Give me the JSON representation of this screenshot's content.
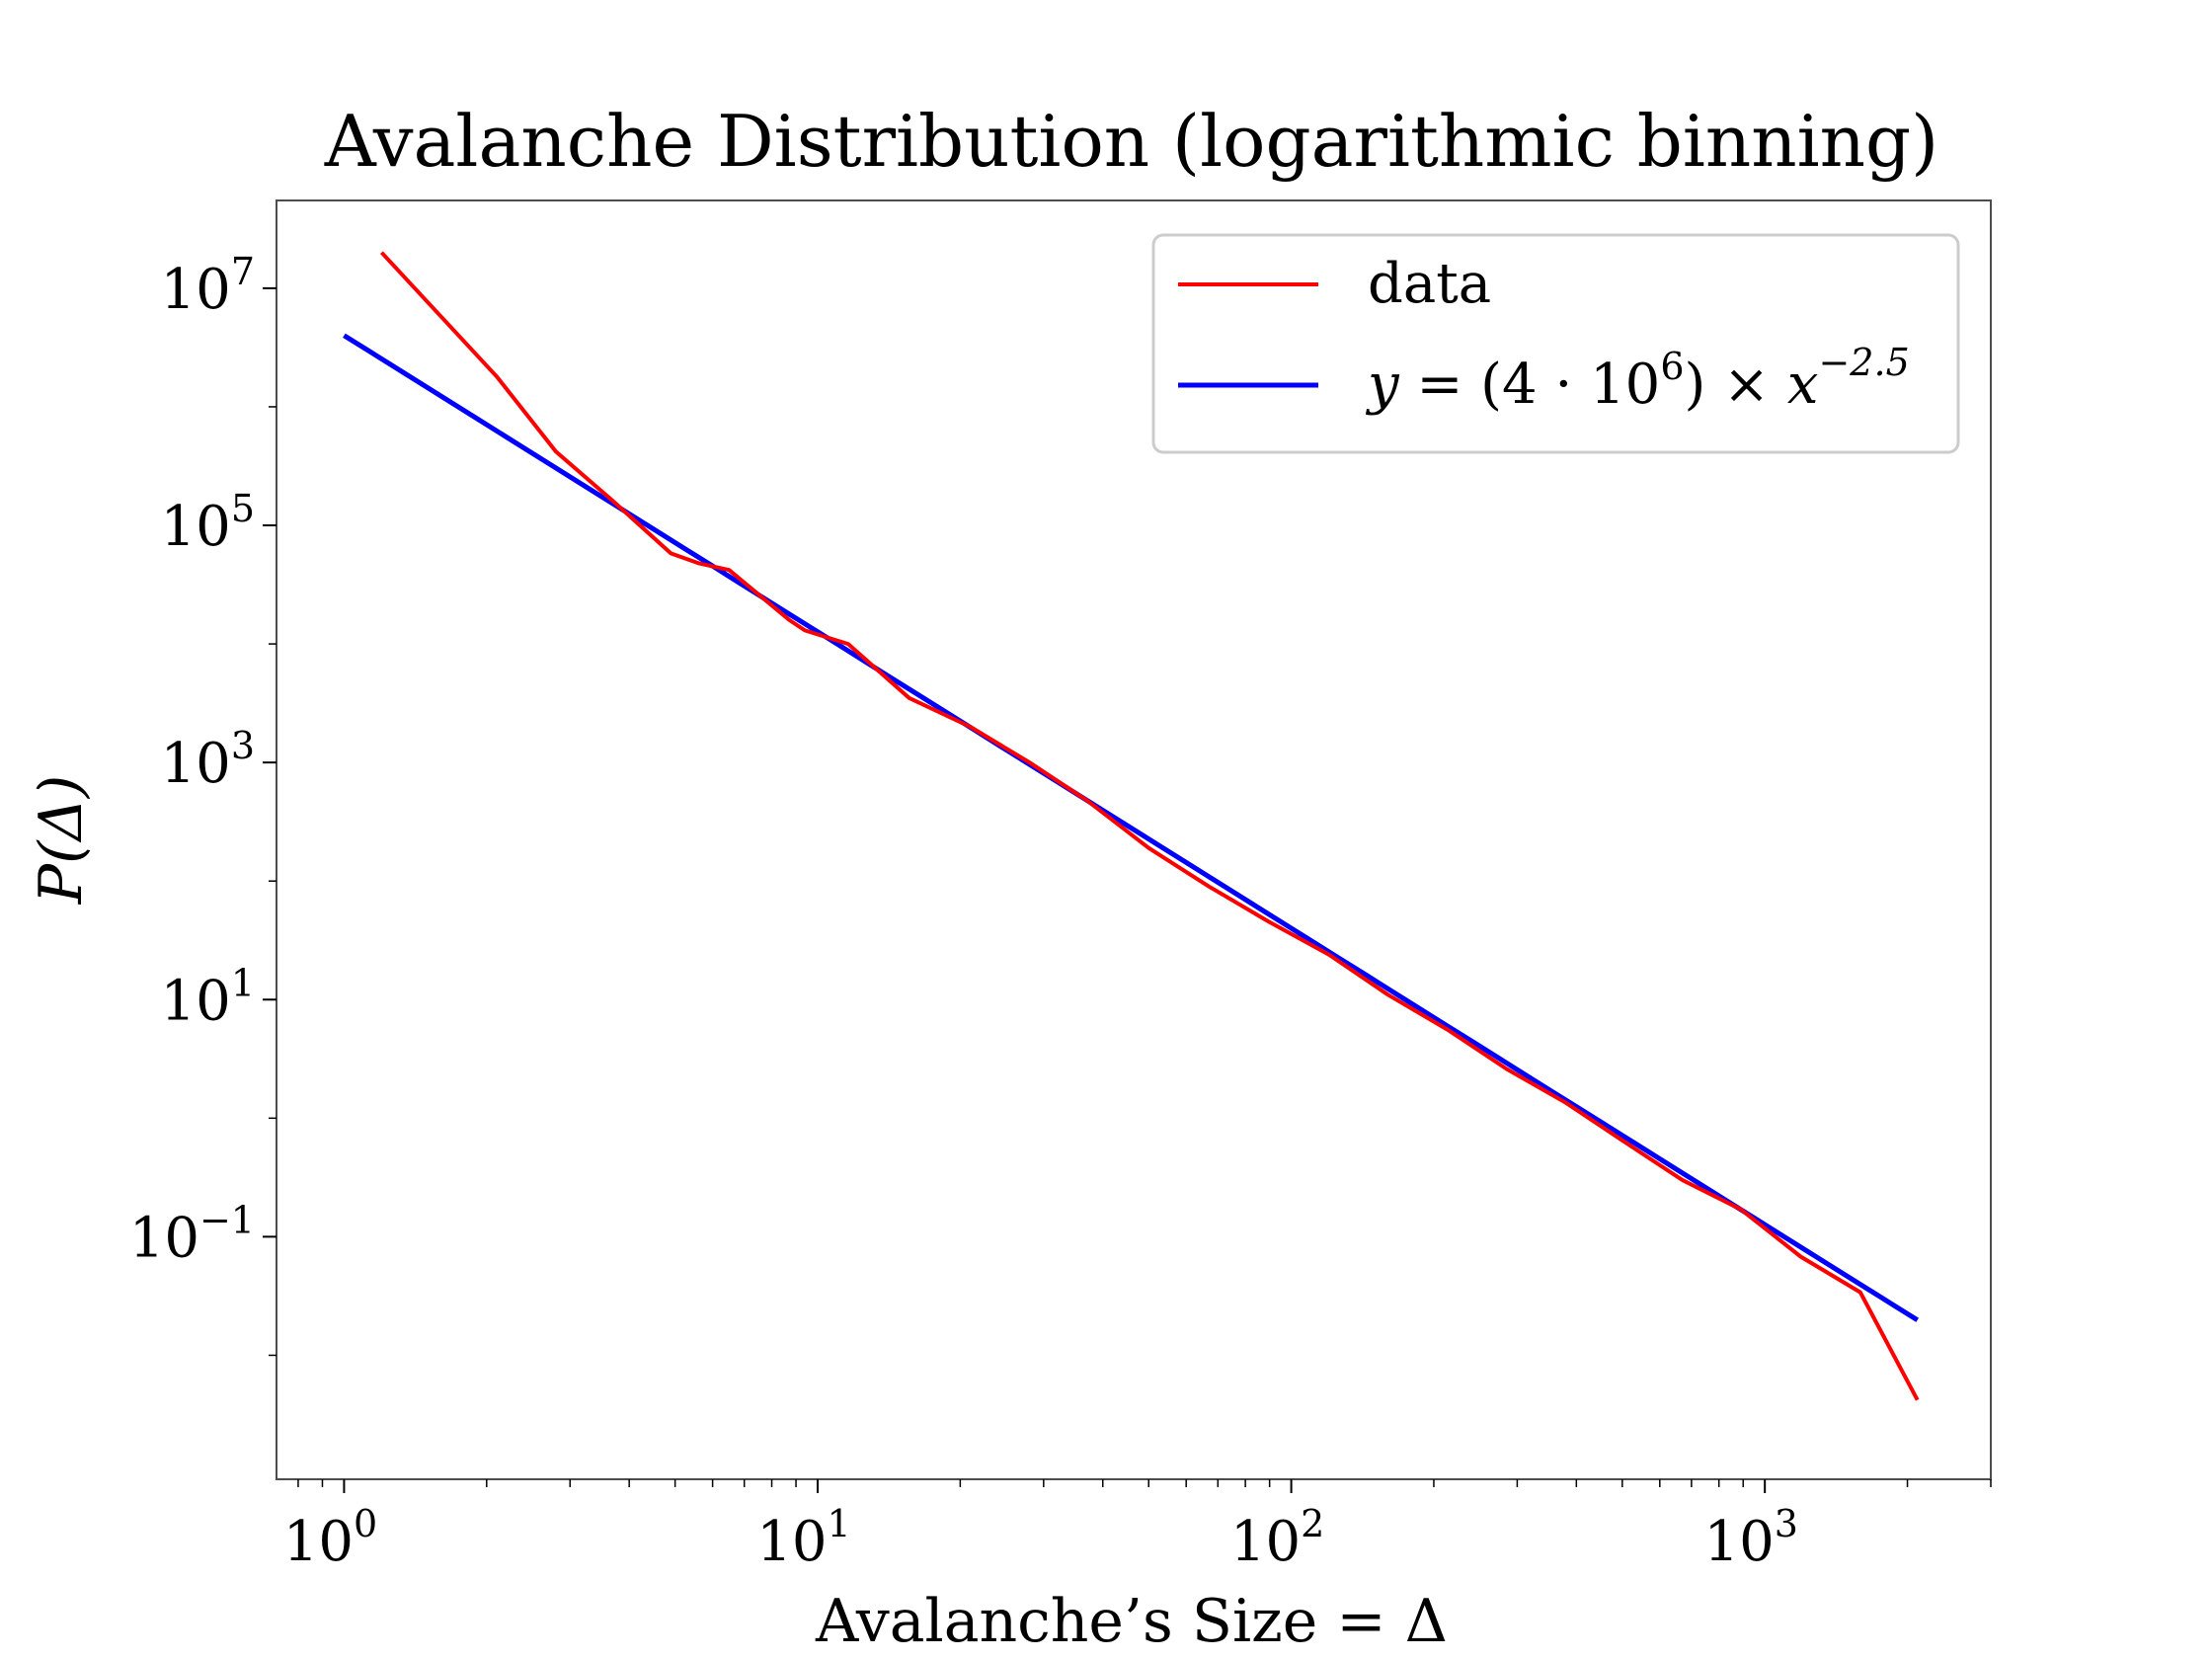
{
  "chart_data": {
    "type": "line",
    "title": "Avalanche Distribution (logarithmic binning)",
    "xlabel": "Avalanche’s Size = Δ",
    "ylabel": "P(Δ)",
    "xscale": "log",
    "yscale": "log",
    "xlim": [
      0.72,
      3000
    ],
    "ylim": [
      0.0009,
      55000000
    ],
    "grid": false,
    "legend_position": "top-right",
    "x_ticks": [
      {
        "value": 1,
        "base": "10",
        "exp": "0"
      },
      {
        "value": 10,
        "base": "10",
        "exp": "1"
      },
      {
        "value": 100,
        "base": "10",
        "exp": "2"
      },
      {
        "value": 1000,
        "base": "10",
        "exp": "3"
      }
    ],
    "y_ticks": [
      {
        "value": 0.1,
        "base": "10",
        "exp": "−1"
      },
      {
        "value": 10,
        "base": "10",
        "exp": "1"
      },
      {
        "value": 1000,
        "base": "10",
        "exp": "3"
      },
      {
        "value": 100000,
        "base": "10",
        "exp": "5"
      },
      {
        "value": 10000000,
        "base": "10",
        "exp": "7"
      }
    ],
    "series": [
      {
        "name": "data",
        "color": "#ff0000",
        "x": [
          1.2,
          2.1,
          2.8,
          3.7,
          4.9,
          5.6,
          6.5,
          8.7,
          9.4,
          11.6,
          15.6,
          21,
          28,
          37,
          50,
          67,
          90,
          120,
          160,
          215,
          285,
          380,
          500,
          670,
          890,
          1190,
          1590,
          2100
        ],
        "y": [
          20000000,
          1800000,
          420000,
          160000,
          58000,
          48000,
          42000,
          16000,
          13000,
          10000,
          3500,
          2000,
          1000,
          480,
          190,
          90,
          45,
          24,
          11,
          5.5,
          2.6,
          1.35,
          0.65,
          0.3,
          0.17,
          0.068,
          0.034,
          0.0042
        ]
      },
      {
        "name": "y = (4·10⁶) × x⁻²·⁵",
        "color": "#0000ff",
        "coefficient": 4000000,
        "exponent": -2.5,
        "x_range": [
          1,
          2100
        ]
      }
    ],
    "legend": {
      "entries": [
        {
          "label": "data",
          "color": "#ff0000"
        },
        {
          "color": "#0000ff",
          "parts": [
            "y",
            " = (4 · 10",
            "6",
            ") × ",
            "x",
            "−2.5"
          ]
        }
      ]
    }
  }
}
